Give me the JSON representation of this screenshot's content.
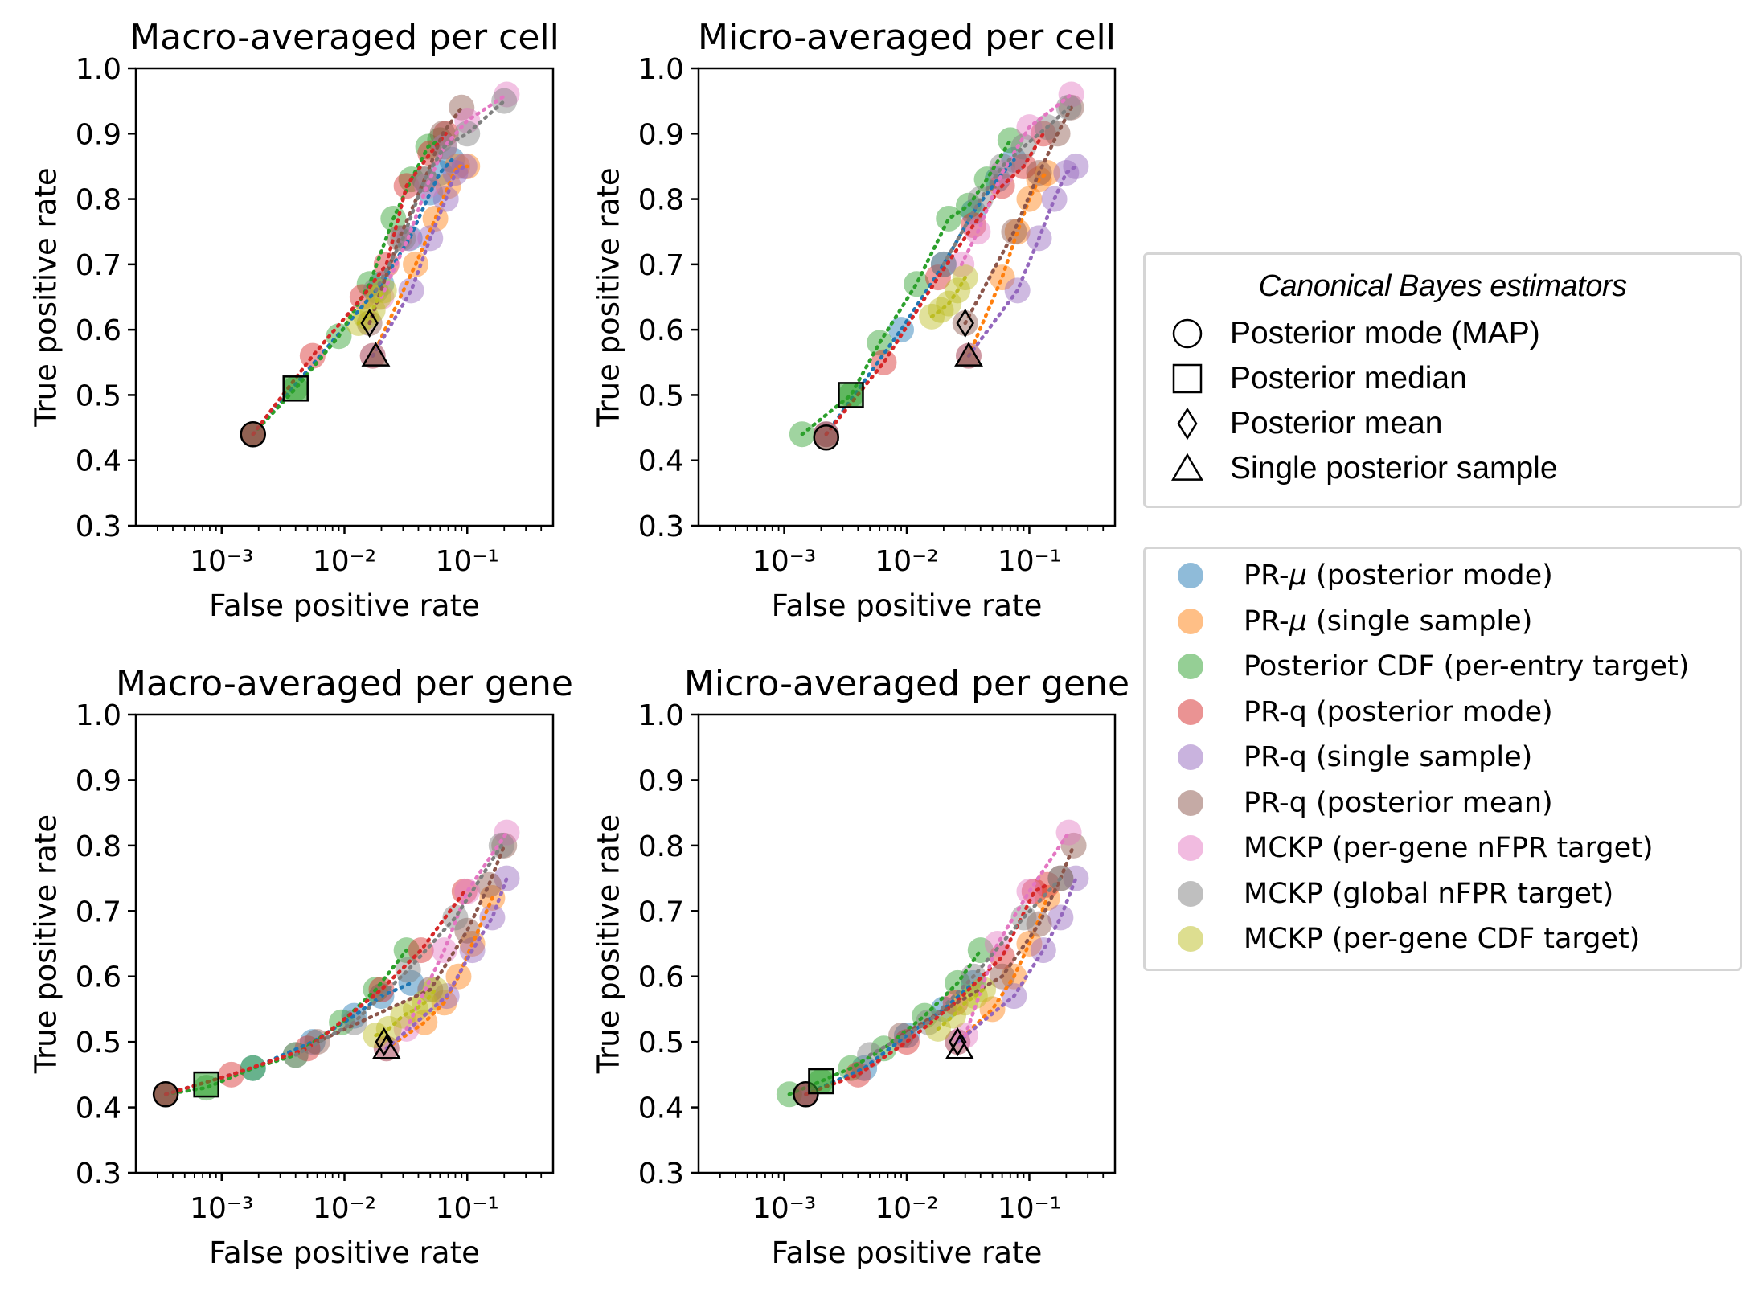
{
  "colors": {
    "PR-mu-mode": "#1f77b4",
    "PR-mu-sample": "#ff7f0e",
    "posterior-cdf": "#2ca02c",
    "PR-q-mode": "#d62728",
    "PR-q-sample": "#9467bd",
    "PR-q-mean": "#8c564b",
    "MCKP-gene-nfpr": "#e377c2",
    "MCKP-global-nfpr": "#7f7f7f",
    "MCKP-gene-cdf": "#bcbd22"
  },
  "estimator_legend": {
    "title": "Canonical Bayes estimators",
    "items": [
      {
        "marker": "circle",
        "label": "Posterior mode (MAP)"
      },
      {
        "marker": "square",
        "label": "Posterior median"
      },
      {
        "marker": "diamond",
        "label": "Posterior mean"
      },
      {
        "marker": "triangle",
        "label": "Single posterior sample"
      }
    ]
  },
  "method_legend": {
    "items": [
      {
        "key": "PR-mu-mode",
        "prefix": "PR-",
        "symbol": "μ",
        "suffix": " (posterior mode)"
      },
      {
        "key": "PR-mu-sample",
        "prefix": "PR-",
        "symbol": "μ",
        "suffix": " (single sample)"
      },
      {
        "key": "posterior-cdf",
        "prefix": "Posterior CDF (per-entry target)",
        "symbol": "",
        "suffix": ""
      },
      {
        "key": "PR-q-mode",
        "prefix": "PR-q (posterior mode)",
        "symbol": "",
        "suffix": ""
      },
      {
        "key": "PR-q-sample",
        "prefix": "PR-q (single sample)",
        "symbol": "",
        "suffix": ""
      },
      {
        "key": "PR-q-mean",
        "prefix": "PR-q (posterior mean)",
        "symbol": "",
        "suffix": ""
      },
      {
        "key": "MCKP-gene-nfpr",
        "prefix": "MCKP (per-gene nFPR target)",
        "symbol": "",
        "suffix": ""
      },
      {
        "key": "MCKP-global-nfpr",
        "prefix": "MCKP (global nFPR target)",
        "symbol": "",
        "suffix": ""
      },
      {
        "key": "MCKP-gene-cdf",
        "prefix": "MCKP (per-gene CDF target)",
        "symbol": "",
        "suffix": ""
      }
    ]
  },
  "chart_data": [
    {
      "type": "scatter",
      "title": "Macro-averaged per cell",
      "xlabel": "False positive rate",
      "ylabel": "True positive rate",
      "xscale": "log",
      "xlim": [
        0.0002,
        0.5
      ],
      "ylim": [
        0.3,
        1.0
      ],
      "xticks": [
        {
          "value": 0.001,
          "label": "10⁻³"
        },
        {
          "value": 0.01,
          "label": "10⁻²"
        },
        {
          "value": 0.1,
          "label": "10⁻¹"
        }
      ],
      "yticks": [
        "0.3",
        "0.4",
        "0.5",
        "0.6",
        "0.7",
        "0.8",
        "0.9",
        "1.0"
      ],
      "series": [
        {
          "key": "PR-mu-mode",
          "x": [
            0.0018,
            0.02,
            0.034,
            0.05,
            0.06,
            0.075
          ],
          "y": [
            0.44,
            0.67,
            0.74,
            0.81,
            0.84,
            0.86
          ]
        },
        {
          "key": "PR-mu-sample",
          "x": [
            0.017,
            0.038,
            0.055,
            0.07,
            0.083,
            0.1
          ],
          "y": [
            0.56,
            0.7,
            0.77,
            0.82,
            0.85,
            0.85
          ]
        },
        {
          "key": "posterior-cdf",
          "x": [
            0.0018,
            0.004,
            0.009,
            0.016,
            0.025,
            0.035,
            0.048,
            0.06
          ],
          "y": [
            0.44,
            0.51,
            0.59,
            0.67,
            0.77,
            0.83,
            0.88,
            0.89
          ]
        },
        {
          "key": "PR-q-mode",
          "x": [
            0.0018,
            0.0055,
            0.014,
            0.022,
            0.032,
            0.05,
            0.067
          ],
          "y": [
            0.44,
            0.56,
            0.65,
            0.7,
            0.82,
            0.87,
            0.9
          ]
        },
        {
          "key": "PR-q-sample",
          "x": [
            0.017,
            0.035,
            0.05,
            0.067,
            0.08,
            0.095
          ],
          "y": [
            0.56,
            0.66,
            0.74,
            0.8,
            0.84,
            0.85
          ]
        },
        {
          "key": "PR-q-mean",
          "x": [
            0.016,
            0.028,
            0.045,
            0.063,
            0.09
          ],
          "y": [
            0.61,
            0.74,
            0.83,
            0.9,
            0.94
          ]
        },
        {
          "key": "MCKP-gene-nfpr",
          "x": [
            0.02,
            0.033,
            0.047,
            0.065,
            0.1,
            0.21
          ],
          "y": [
            0.65,
            0.74,
            0.82,
            0.88,
            0.92,
            0.96
          ]
        },
        {
          "key": "MCKP-global-nfpr",
          "x": [
            0.018,
            0.03,
            0.045,
            0.065,
            0.1,
            0.2
          ],
          "y": [
            0.66,
            0.74,
            0.83,
            0.88,
            0.9,
            0.95
          ]
        },
        {
          "key": "MCKP-gene-cdf",
          "x": [
            0.013,
            0.015,
            0.017,
            0.019,
            0.021
          ],
          "y": [
            0.61,
            0.62,
            0.63,
            0.65,
            0.66
          ]
        }
      ],
      "estimators": [
        {
          "marker": "circle",
          "x": 0.0018,
          "y": 0.44,
          "fill": "PR-q-mean"
        },
        {
          "marker": "square",
          "x": 0.004,
          "y": 0.51,
          "fill": "posterior-cdf"
        },
        {
          "marker": "diamond",
          "x": 0.016,
          "y": 0.61,
          "fill": ""
        },
        {
          "marker": "triangle",
          "x": 0.018,
          "y": 0.56,
          "fill": "PR-q-mean"
        }
      ]
    },
    {
      "type": "scatter",
      "title": "Micro-averaged per cell",
      "xlabel": "False positive rate",
      "ylabel": "True positive rate",
      "xscale": "log",
      "xlim": [
        0.0002,
        0.5
      ],
      "ylim": [
        0.3,
        1.0
      ],
      "xticks": [
        {
          "value": 0.001,
          "label": "10⁻³"
        },
        {
          "value": 0.01,
          "label": "10⁻²"
        },
        {
          "value": 0.1,
          "label": "10⁻¹"
        }
      ],
      "yticks": [
        "0.3",
        "0.4",
        "0.5",
        "0.6",
        "0.7",
        "0.8",
        "0.9",
        "1.0"
      ],
      "series": [
        {
          "key": "PR-mu-mode",
          "x": [
            0.0022,
            0.009,
            0.02,
            0.035,
            0.055,
            0.075
          ],
          "y": [
            0.44,
            0.6,
            0.7,
            0.78,
            0.83,
            0.86
          ]
        },
        {
          "key": "PR-mu-sample",
          "x": [
            0.032,
            0.06,
            0.08,
            0.1,
            0.12,
            0.14
          ],
          "y": [
            0.56,
            0.68,
            0.75,
            0.8,
            0.83,
            0.84
          ]
        },
        {
          "key": "posterior-cdf",
          "x": [
            0.0014,
            0.0035,
            0.006,
            0.012,
            0.022,
            0.032,
            0.045,
            0.07
          ],
          "y": [
            0.44,
            0.5,
            0.58,
            0.67,
            0.77,
            0.79,
            0.83,
            0.89
          ]
        },
        {
          "key": "PR-q-mode",
          "x": [
            0.0022,
            0.0065,
            0.018,
            0.035,
            0.06,
            0.09,
            0.13
          ],
          "y": [
            0.44,
            0.55,
            0.68,
            0.76,
            0.82,
            0.85,
            0.9
          ]
        },
        {
          "key": "PR-q-sample",
          "x": [
            0.032,
            0.08,
            0.12,
            0.16,
            0.2,
            0.24
          ],
          "y": [
            0.56,
            0.66,
            0.74,
            0.8,
            0.84,
            0.85
          ]
        },
        {
          "key": "PR-q-mean",
          "x": [
            0.03,
            0.075,
            0.12,
            0.17,
            0.22
          ],
          "y": [
            0.61,
            0.75,
            0.84,
            0.9,
            0.94
          ]
        },
        {
          "key": "MCKP-gene-nfpr",
          "x": [
            0.028,
            0.038,
            0.06,
            0.1,
            0.22
          ],
          "y": [
            0.7,
            0.75,
            0.84,
            0.91,
            0.96
          ]
        },
        {
          "key": "MCKP-global-nfpr",
          "x": [
            0.02,
            0.04,
            0.06,
            0.09,
            0.14,
            0.21
          ],
          "y": [
            0.7,
            0.8,
            0.85,
            0.88,
            0.91,
            0.94
          ]
        },
        {
          "key": "MCKP-gene-cdf",
          "x": [
            0.016,
            0.019,
            0.022,
            0.026,
            0.03
          ],
          "y": [
            0.62,
            0.63,
            0.64,
            0.66,
            0.68
          ]
        }
      ],
      "estimators": [
        {
          "marker": "circle",
          "x": 0.0022,
          "y": 0.435,
          "fill": "PR-q-mean"
        },
        {
          "marker": "square",
          "x": 0.0035,
          "y": 0.5,
          "fill": "posterior-cdf"
        },
        {
          "marker": "diamond",
          "x": 0.03,
          "y": 0.61,
          "fill": ""
        },
        {
          "marker": "triangle",
          "x": 0.032,
          "y": 0.56,
          "fill": "PR-q-mean"
        }
      ]
    },
    {
      "type": "scatter",
      "title": "Macro-averaged per gene",
      "xlabel": "False positive rate",
      "ylabel": "True positive rate",
      "xscale": "log",
      "xlim": [
        0.0002,
        0.5
      ],
      "ylim": [
        0.3,
        1.0
      ],
      "xticks": [
        {
          "value": 0.001,
          "label": "10⁻³"
        },
        {
          "value": 0.01,
          "label": "10⁻²"
        },
        {
          "value": 0.1,
          "label": "10⁻¹"
        }
      ],
      "yticks": [
        "0.3",
        "0.4",
        "0.5",
        "0.6",
        "0.7",
        "0.8",
        "0.9",
        "1.0"
      ],
      "series": [
        {
          "key": "PR-mu-mode",
          "x": [
            0.00035,
            0.0018,
            0.0055,
            0.012,
            0.02,
            0.035
          ],
          "y": [
            0.42,
            0.46,
            0.5,
            0.54,
            0.57,
            0.59
          ]
        },
        {
          "key": "PR-mu-sample",
          "x": [
            0.022,
            0.045,
            0.065,
            0.085,
            0.11,
            0.16
          ],
          "y": [
            0.49,
            0.53,
            0.56,
            0.6,
            0.65,
            0.72
          ]
        },
        {
          "key": "posterior-cdf",
          "x": [
            0.00035,
            0.00075,
            0.0018,
            0.004,
            0.0095,
            0.018,
            0.032
          ],
          "y": [
            0.42,
            0.43,
            0.46,
            0.48,
            0.53,
            0.58,
            0.64
          ]
        },
        {
          "key": "PR-q-mode",
          "x": [
            0.00035,
            0.0012,
            0.005,
            0.02,
            0.042,
            0.095
          ],
          "y": [
            0.42,
            0.45,
            0.49,
            0.58,
            0.64,
            0.73
          ]
        },
        {
          "key": "PR-q-sample",
          "x": [
            0.022,
            0.068,
            0.11,
            0.16,
            0.21
          ],
          "y": [
            0.49,
            0.57,
            0.64,
            0.69,
            0.75
          ]
        },
        {
          "key": "PR-q-mean",
          "x": [
            0.006,
            0.05,
            0.1,
            0.15,
            0.2
          ],
          "y": [
            0.5,
            0.58,
            0.67,
            0.74,
            0.8
          ]
        },
        {
          "key": "MCKP-gene-nfpr",
          "x": [
            0.032,
            0.065,
            0.1,
            0.21
          ],
          "y": [
            0.52,
            0.64,
            0.73,
            0.82
          ]
        },
        {
          "key": "MCKP-global-nfpr",
          "x": [
            0.004,
            0.012,
            0.033,
            0.08,
            0.19
          ],
          "y": [
            0.48,
            0.53,
            0.61,
            0.69,
            0.8
          ]
        },
        {
          "key": "MCKP-gene-cdf",
          "x": [
            0.018,
            0.023,
            0.03,
            0.038,
            0.045,
            0.055
          ],
          "y": [
            0.51,
            0.52,
            0.54,
            0.55,
            0.56,
            0.58
          ]
        }
      ],
      "estimators": [
        {
          "marker": "circle",
          "x": 0.00035,
          "y": 0.42,
          "fill": "PR-q-mean"
        },
        {
          "marker": "square",
          "x": 0.00075,
          "y": 0.435,
          "fill": "posterior-cdf"
        },
        {
          "marker": "diamond",
          "x": 0.021,
          "y": 0.5,
          "fill": ""
        },
        {
          "marker": "triangle",
          "x": 0.022,
          "y": 0.49,
          "fill": ""
        }
      ]
    },
    {
      "type": "scatter",
      "title": "Micro-averaged per gene",
      "xlabel": "False positive rate",
      "ylabel": "True positive rate",
      "xscale": "log",
      "xlim": [
        0.0002,
        0.5
      ],
      "ylim": [
        0.3,
        1.0
      ],
      "xticks": [
        {
          "value": 0.001,
          "label": "10⁻³"
        },
        {
          "value": 0.01,
          "label": "10⁻²"
        },
        {
          "value": 0.1,
          "label": "10⁻¹"
        }
      ],
      "yticks": [
        "0.3",
        "0.4",
        "0.5",
        "0.6",
        "0.7",
        "0.8",
        "0.9",
        "1.0"
      ],
      "series": [
        {
          "key": "PR-mu-mode",
          "x": [
            0.0015,
            0.0045,
            0.01,
            0.02,
            0.035
          ],
          "y": [
            0.42,
            0.46,
            0.51,
            0.55,
            0.59
          ]
        },
        {
          "key": "PR-mu-sample",
          "x": [
            0.026,
            0.05,
            0.075,
            0.1,
            0.14
          ],
          "y": [
            0.5,
            0.55,
            0.6,
            0.65,
            0.72
          ]
        },
        {
          "key": "posterior-cdf",
          "x": [
            0.0011,
            0.002,
            0.0035,
            0.0065,
            0.014,
            0.026,
            0.04
          ],
          "y": [
            0.42,
            0.44,
            0.46,
            0.49,
            0.54,
            0.59,
            0.64
          ]
        },
        {
          "key": "PR-q-mode",
          "x": [
            0.0015,
            0.004,
            0.01,
            0.025,
            0.06,
            0.11,
            0.14
          ],
          "y": [
            0.42,
            0.45,
            0.5,
            0.56,
            0.63,
            0.73,
            0.74
          ]
        },
        {
          "key": "PR-q-sample",
          "x": [
            0.026,
            0.075,
            0.13,
            0.18,
            0.24
          ],
          "y": [
            0.5,
            0.57,
            0.64,
            0.69,
            0.75
          ]
        },
        {
          "key": "PR-q-mean",
          "x": [
            0.009,
            0.06,
            0.12,
            0.18,
            0.23
          ],
          "y": [
            0.51,
            0.6,
            0.68,
            0.75,
            0.8
          ]
        },
        {
          "key": "MCKP-gene-nfpr",
          "x": [
            0.03,
            0.055,
            0.1,
            0.21
          ],
          "y": [
            0.51,
            0.65,
            0.73,
            0.82
          ]
        },
        {
          "key": "MCKP-global-nfpr",
          "x": [
            0.005,
            0.015,
            0.035,
            0.09,
            0.18
          ],
          "y": [
            0.48,
            0.53,
            0.6,
            0.69,
            0.75
          ]
        },
        {
          "key": "MCKP-gene-cdf",
          "x": [
            0.018,
            0.024,
            0.03,
            0.036,
            0.042
          ],
          "y": [
            0.52,
            0.54,
            0.56,
            0.57,
            0.58
          ]
        }
      ],
      "estimators": [
        {
          "marker": "circle",
          "x": 0.0015,
          "y": 0.42,
          "fill": "PR-q-mean"
        },
        {
          "marker": "square",
          "x": 0.002,
          "y": 0.44,
          "fill": "posterior-cdf"
        },
        {
          "marker": "diamond",
          "x": 0.026,
          "y": 0.5,
          "fill": ""
        },
        {
          "marker": "triangle",
          "x": 0.027,
          "y": 0.49,
          "fill": ""
        }
      ]
    }
  ]
}
